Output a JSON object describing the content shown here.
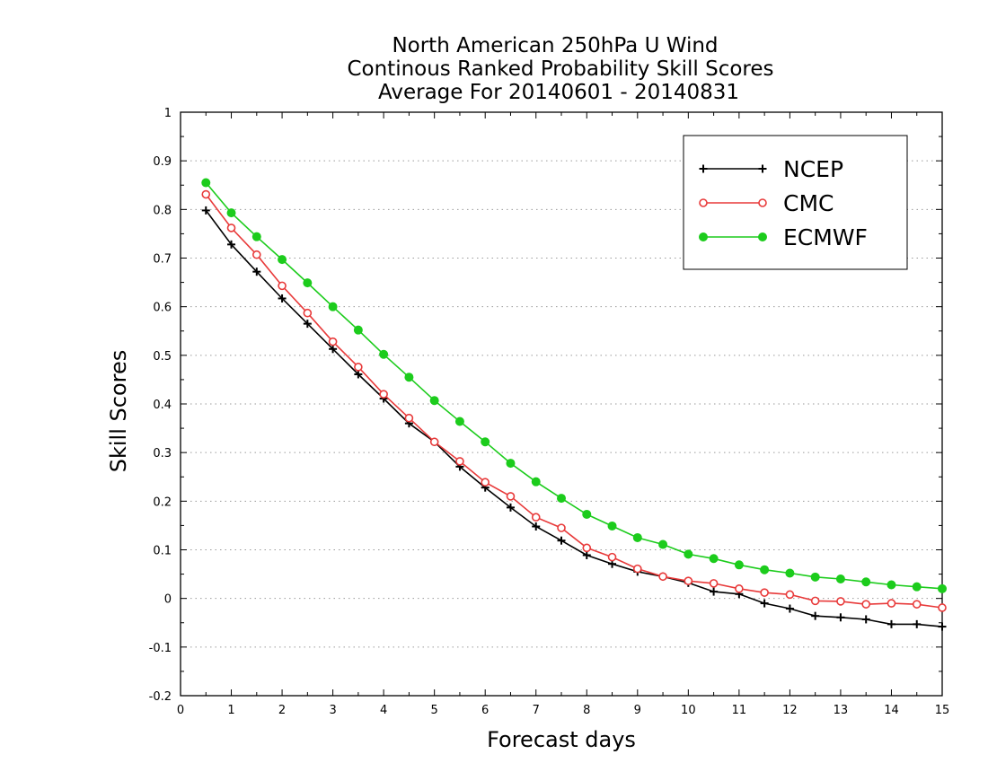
{
  "chart_data": {
    "type": "line",
    "title": [
      "North American 250hPa U Wind",
      "Continous Ranked Probability Skill Scores",
      "Average For 20140601 - 20140831"
    ],
    "xlabel": "Forecast days",
    "ylabel": "Skill Scores",
    "xlim": [
      0,
      15
    ],
    "ylim": [
      -0.2,
      1
    ],
    "xticks": [
      "0",
      "1",
      "2",
      "3",
      "4",
      "5",
      "6",
      "7",
      "8",
      "9",
      "10",
      "11",
      "12",
      "13",
      "14",
      "15"
    ],
    "yticks": [
      "-0.2",
      "-0.1",
      "0",
      "0.1",
      "0.2",
      "0.3",
      "0.4",
      "0.5",
      "0.6",
      "0.7",
      "0.8",
      "0.9",
      "1"
    ],
    "grid": "horizontal dotted",
    "legend_position": "top-right",
    "x": [
      0.5,
      1,
      1.5,
      2,
      2.5,
      3,
      3.5,
      4,
      4.5,
      5,
      5.5,
      6,
      6.5,
      7,
      7.5,
      8,
      8.5,
      9,
      9.5,
      10,
      10.5,
      11,
      11.5,
      12,
      12.5,
      13,
      13.5,
      14,
      14.5,
      15
    ],
    "series": [
      {
        "name": "NCEP",
        "color": "#000000",
        "marker": "plus",
        "values": [
          0.798,
          0.728,
          0.672,
          0.617,
          0.565,
          0.513,
          0.461,
          0.411,
          0.36,
          0.322,
          0.271,
          0.228,
          0.187,
          0.148,
          0.119,
          0.089,
          0.071,
          0.055,
          0.045,
          0.032,
          0.014,
          0.009,
          -0.01,
          -0.021,
          -0.036,
          -0.039,
          -0.043,
          -0.053,
          -0.053,
          -0.058
        ]
      },
      {
        "name": "CMC",
        "color": "#e83a3a",
        "marker": "open-circle",
        "values": [
          0.831,
          0.762,
          0.707,
          0.643,
          0.587,
          0.528,
          0.476,
          0.42,
          0.371,
          0.322,
          0.282,
          0.239,
          0.21,
          0.167,
          0.145,
          0.104,
          0.085,
          0.061,
          0.045,
          0.036,
          0.031,
          0.02,
          0.012,
          0.008,
          -0.005,
          -0.006,
          -0.012,
          -0.01,
          -0.012,
          -0.019
        ]
      },
      {
        "name": "ECMWF",
        "color": "#1ccc1c",
        "marker": "filled-circle",
        "values": [
          0.855,
          0.793,
          0.744,
          0.697,
          0.649,
          0.6,
          0.552,
          0.502,
          0.455,
          0.407,
          0.364,
          0.322,
          0.278,
          0.24,
          0.206,
          0.173,
          0.149,
          0.125,
          0.111,
          0.091,
          0.082,
          0.069,
          0.059,
          0.052,
          0.044,
          0.04,
          0.034,
          0.028,
          0.024,
          0.02
        ]
      }
    ]
  }
}
